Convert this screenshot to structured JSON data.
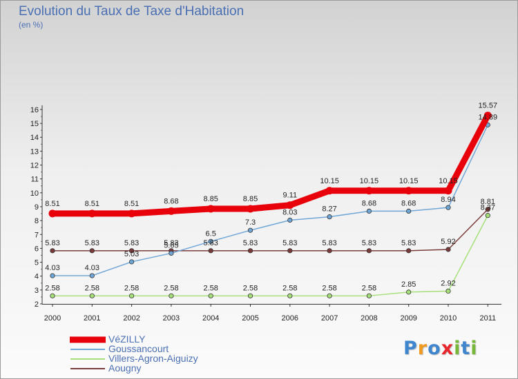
{
  "title": "Evolution du Taux de Taxe d'Habitation",
  "unit_label": "(en %)",
  "logo": {
    "text": "Proxiti",
    "letters": [
      {
        "ch": "P",
        "color": "#3f86cf"
      },
      {
        "ch": "r",
        "color": "#f29a1f"
      },
      {
        "ch": "o",
        "color": "#3f86cf"
      },
      {
        "ch": "x",
        "color": "#e8262c"
      },
      {
        "ch": "i",
        "color": "#77b83a"
      },
      {
        "ch": "t",
        "color": "#3f86cf"
      },
      {
        "ch": "i",
        "color": "#77b83a"
      }
    ]
  },
  "chart_data": {
    "type": "line",
    "title": "Evolution du Taux de Taxe d'Habitation",
    "ylabel": "(en %)",
    "xlabel": "",
    "x": [
      "2000",
      "2001",
      "2002",
      "2003",
      "2004",
      "2005",
      "2006",
      "2007",
      "2008",
      "2009",
      "2010",
      "2011"
    ],
    "ylim": [
      2,
      16
    ],
    "yticks": [
      2,
      3,
      4,
      5,
      6,
      7,
      8,
      9,
      10,
      11,
      12,
      13,
      14,
      15,
      16
    ],
    "grid": false,
    "legend_position": "bottom-left",
    "series": [
      {
        "name": "VéZILLY",
        "color": "#e8000b",
        "emphasis": true,
        "values": [
          8.51,
          8.51,
          8.51,
          8.68,
          8.85,
          8.85,
          9.11,
          10.15,
          10.15,
          10.15,
          10.15,
          15.57
        ],
        "labels": [
          "8.51",
          "8.51",
          "8.51",
          "8.68",
          "8.85",
          "8.85",
          "9.11",
          "10.15",
          "10.15",
          "10.15",
          "10.15",
          "15.57"
        ]
      },
      {
        "name": "Goussancourt",
        "color": "#6fa6d6",
        "values": [
          4.03,
          4.03,
          5.03,
          5.65,
          6.5,
          7.3,
          8.03,
          8.27,
          8.68,
          8.68,
          8.94,
          14.89
        ],
        "labels": [
          "4.03",
          "4.03",
          "5.03",
          "5.65",
          "6.5",
          "7.3",
          "8.03",
          "8.27",
          "8.68",
          "8.68",
          "8.94",
          "14.89"
        ]
      },
      {
        "name": "Villers-Agron-Aiguizy",
        "color": "#a7e07a",
        "values": [
          2.58,
          2.58,
          2.58,
          2.58,
          2.58,
          2.58,
          2.58,
          2.58,
          2.58,
          2.85,
          2.92,
          8.37
        ],
        "labels": [
          "2.58",
          "2.58",
          "2.58",
          "2.58",
          "2.58",
          "2.58",
          "2.58",
          "2.58",
          "2.58",
          "2.85",
          "2.92",
          "8.37"
        ]
      },
      {
        "name": "Aougny",
        "color": "#7a3a3a",
        "values": [
          5.83,
          5.83,
          5.83,
          5.83,
          5.83,
          5.83,
          5.83,
          5.83,
          5.83,
          5.83,
          5.92,
          8.81
        ],
        "labels": [
          "5.83",
          "5.83",
          "5.83",
          "5.83",
          "5.83",
          "5.83",
          "5.83",
          "5.83",
          "5.83",
          "5.83",
          "5.92",
          "8.81"
        ]
      }
    ]
  }
}
